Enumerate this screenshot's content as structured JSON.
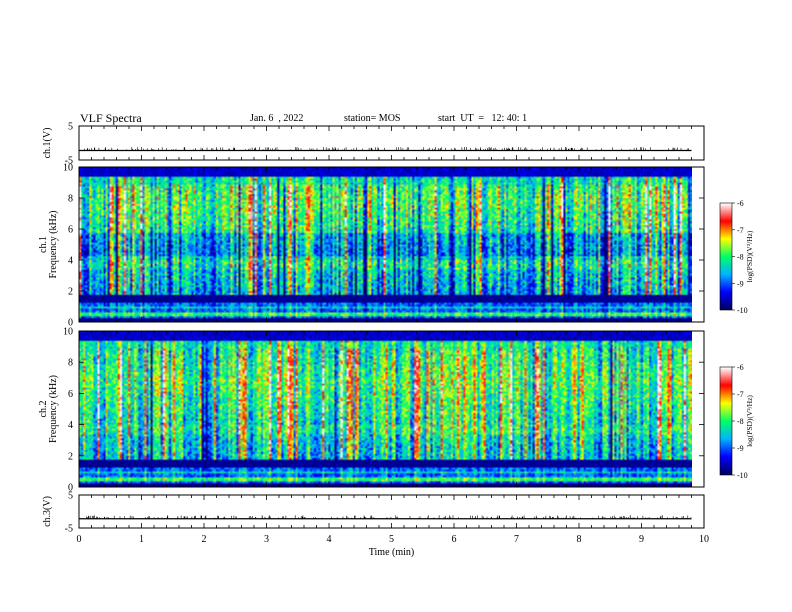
{
  "header": {
    "title": "VLF Spectra",
    "date": "Jan. 6  , 2022",
    "station": "station= MOS",
    "start": "start  UT  =   12: 40: 1"
  },
  "colors": {
    "cmap": [
      "#000060",
      "#0000ff",
      "#00b4ff",
      "#00ff66",
      "#ffff00",
      "#ff0000",
      "#ffffff"
    ]
  },
  "chart_data": [
    {
      "type": "line",
      "ylabel": "ch.1(V)",
      "ylim": [
        -5,
        5
      ],
      "yticks": [
        -5,
        5
      ],
      "xlim": [
        0,
        10
      ],
      "values_summary": "flat near -2.2 V across 0-9.8 min"
    },
    {
      "type": "heatmap",
      "ylabel": "ch.1\nFrequency (kHz)",
      "ylim": [
        0,
        10
      ],
      "yticks": [
        0,
        2,
        4,
        6,
        8,
        10
      ],
      "xlim": [
        0,
        10
      ],
      "data_xmax": 9.8,
      "colorbar": {
        "label": "log(PSD)(V²/Hz)",
        "ticks": [
          -6,
          -7,
          -8,
          -9,
          -10
        ],
        "range": [
          -10,
          -6
        ]
      }
    },
    {
      "type": "heatmap",
      "ylabel": "ch.2\nFrequency (kHz)",
      "ylim": [
        0,
        10
      ],
      "yticks": [
        0,
        2,
        4,
        6,
        8,
        10
      ],
      "xlim": [
        0,
        10
      ],
      "data_xmax": 9.8,
      "colorbar": {
        "label": "log(PSD)(V²/Hz)",
        "ticks": [
          -6,
          -7,
          -8,
          -9,
          -10
        ],
        "range": [
          -10,
          -6
        ]
      }
    },
    {
      "type": "line",
      "ylabel": "ch.3(V)",
      "ylim": [
        -5,
        5
      ],
      "yticks": [
        -5,
        5
      ],
      "xlim": [
        0,
        10
      ],
      "xlabel": "Time (min)",
      "xticks": [
        0,
        1,
        2,
        3,
        4,
        5,
        6,
        7,
        8,
        9,
        10
      ],
      "values_summary": "flat near -2.2 V across 0-9.8 min"
    }
  ]
}
